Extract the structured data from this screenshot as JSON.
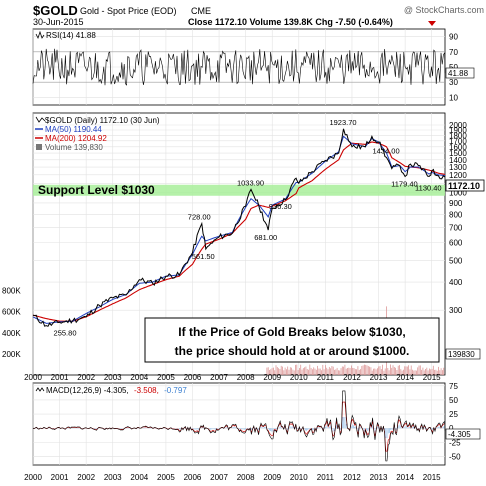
{
  "header": {
    "symbol": "$GOLD",
    "name": "Gold - Spot Price (EOD)",
    "exchange": "CME",
    "date": "30-Jun-2015",
    "quote": "Close 1172.10  Volume 139.8K  Chg -7.50 (-0.64%)",
    "watermark": "@ StockCharts.com"
  },
  "rsi": {
    "label": "RSI(14) 41.88",
    "ticks": [
      {
        "v": 90,
        "label": "90"
      },
      {
        "v": 70,
        "label": "70"
      },
      {
        "v": 50,
        "label": "50"
      },
      {
        "v": 30,
        "label": "30"
      },
      {
        "v": 10,
        "label": "10"
      }
    ],
    "last_label": "41.88",
    "last": 41.88
  },
  "main": {
    "legend": [
      {
        "text": "$GOLD (Daily) 1172.10 (30 Jun)",
        "color": "#000000"
      },
      {
        "text": "MA(50) 1190.44",
        "color": "#1f3fbf"
      },
      {
        "text": "MA(200) 1204.92",
        "color": "#cc0000"
      },
      {
        "text": "Volume 139,830",
        "color": "#555555"
      }
    ],
    "price_ticks": [
      {
        "v": 2000,
        "label": "2000"
      },
      {
        "v": 1900,
        "label": "1900"
      },
      {
        "v": 1800,
        "label": "1800"
      },
      {
        "v": 1700,
        "label": "1700"
      },
      {
        "v": 1600,
        "label": "1600"
      },
      {
        "v": 1500,
        "label": "1500"
      },
      {
        "v": 1400,
        "label": "1400"
      },
      {
        "v": 1300,
        "label": "1300"
      },
      {
        "v": 1200,
        "label": "1200"
      },
      {
        "v": 1100,
        "label": "1100"
      },
      {
        "v": 1000,
        "label": "1000"
      },
      {
        "v": 900,
        "label": "900"
      },
      {
        "v": 800,
        "label": "800"
      },
      {
        "v": 700,
        "label": "700"
      },
      {
        "v": 600,
        "label": "600"
      },
      {
        "v": 500,
        "label": "500"
      },
      {
        "v": 400,
        "label": "400"
      },
      {
        "v": 300,
        "label": "300"
      }
    ],
    "volume_ticks": [
      {
        "v": 800000,
        "label": "800K"
      },
      {
        "v": 600000,
        "label": "600K"
      },
      {
        "v": 400000,
        "label": "400K"
      },
      {
        "v": 200000,
        "label": "200K"
      }
    ],
    "last_price_label": "1172.10",
    "last_volume_label": "139830",
    "support_label": "Support Level $1030",
    "support_value": 1030,
    "callout_lines": [
      "If the Price of Gold Breaks below $1030,",
      "the price should hold at or around $1000."
    ]
  },
  "macd": {
    "label_base": "MACD(12,26,9) -4.305,",
    "label_signal": "-3.508,",
    "label_hist": "-0.797",
    "ticks": [
      {
        "v": 75,
        "label": "75"
      },
      {
        "v": 50,
        "label": "50"
      },
      {
        "v": 25,
        "label": "25"
      },
      {
        "v": 0,
        "label": "0"
      },
      {
        "v": -25,
        "label": "-25"
      },
      {
        "v": -50,
        "label": "-50"
      }
    ],
    "last_label": "-4.305",
    "last": -4.305
  },
  "x_axis_labels": [
    "2000",
    "2001",
    "2002",
    "2003",
    "2004",
    "2005",
    "2006",
    "2007",
    "2008",
    "2009",
    "2010",
    "2011",
    "2012",
    "2013",
    "2014",
    "2015"
  ],
  "chart_data": {
    "type": "line",
    "title": "$GOLD Gold - Spot Price (EOD) CME",
    "x": [
      2000.0,
      2000.5,
      2001.0,
      2001.5,
      2002.0,
      2002.5,
      2003.0,
      2003.5,
      2004.0,
      2004.5,
      2005.0,
      2005.5,
      2006.0,
      2006.35,
      2006.5,
      2007.0,
      2007.5,
      2008.0,
      2008.2,
      2008.5,
      2008.85,
      2009.0,
      2009.5,
      2009.9,
      2010.0,
      2010.5,
      2011.0,
      2011.5,
      2011.68,
      2012.0,
      2012.5,
      2012.75,
      2013.0,
      2013.3,
      2013.5,
      2013.8,
      2014.0,
      2014.2,
      2014.5,
      2014.9,
      2015.0,
      2015.25,
      2015.5
    ],
    "series": [
      {
        "name": "$GOLD (Daily)",
        "values": [
          285,
          255.8,
          265,
          270,
          280,
          315,
          340,
          350,
          410,
          395,
          425,
          430,
          540,
          728,
          561.5,
          635,
          660,
          870,
          1033.9,
          870,
          681,
          850,
          930,
          1160,
          1100,
          1240,
          1390,
          1500,
          1923.7,
          1600,
          1600,
          1780,
          1680,
          1434,
          1280,
          1320,
          1179.4,
          1340,
          1320,
          1180,
          1250,
          1190,
          1172.1
        ]
      },
      {
        "name": "MA(50)",
        "values": [
          280,
          262,
          266,
          268,
          290,
          310,
          335,
          352,
          395,
          400,
          425,
          430,
          530,
          640,
          610,
          640,
          665,
          860,
          940,
          880,
          780,
          880,
          936.3,
          1110,
          1110,
          1220,
          1380,
          1520,
          1780,
          1650,
          1600,
          1740,
          1680,
          1500,
          1300,
          1320,
          1240,
          1300,
          1300,
          1210,
          1230,
          1200,
          1190.44
        ]
      },
      {
        "name": "MA(200)",
        "values": [
          285,
          275,
          268,
          268,
          280,
          300,
          320,
          340,
          370,
          390,
          410,
          425,
          480,
          560,
          590,
          620,
          660,
          760,
          850,
          880,
          860,
          870,
          920,
          990,
          1050,
          1130,
          1270,
          1400,
          1550,
          1660,
          1640,
          1680,
          1660,
          1600,
          1430,
          1360,
          1310,
          1300,
          1290,
          1260,
          1250,
          1220,
          1204.92
        ]
      }
    ],
    "annotations": [
      {
        "x": 2001.3,
        "value": 255.8,
        "text": "255.80"
      },
      {
        "x": 2006.35,
        "value": 728,
        "text": "728.00"
      },
      {
        "x": 2006.5,
        "value": 561.5,
        "text": "561.50"
      },
      {
        "x": 2008.2,
        "value": 1033.9,
        "text": "1033.90"
      },
      {
        "x": 2009.4,
        "value": 936.3,
        "text": "936.30"
      },
      {
        "x": 2008.85,
        "value": 681,
        "text": "681.00"
      },
      {
        "x": 2011.68,
        "value": 1923.7,
        "text": "1923.70"
      },
      {
        "x": 2013.3,
        "value": 1434,
        "text": "1434.00"
      },
      {
        "x": 2014.0,
        "value": 1179.4,
        "text": "1179.40"
      },
      {
        "x": 2014.9,
        "value": 1130.4,
        "text": "1130.40"
      }
    ],
    "xlim": [
      2000,
      2015.5
    ],
    "ylim": [
      180,
      2000
    ],
    "yscale": "log",
    "grid": true,
    "legend": "top-left"
  }
}
